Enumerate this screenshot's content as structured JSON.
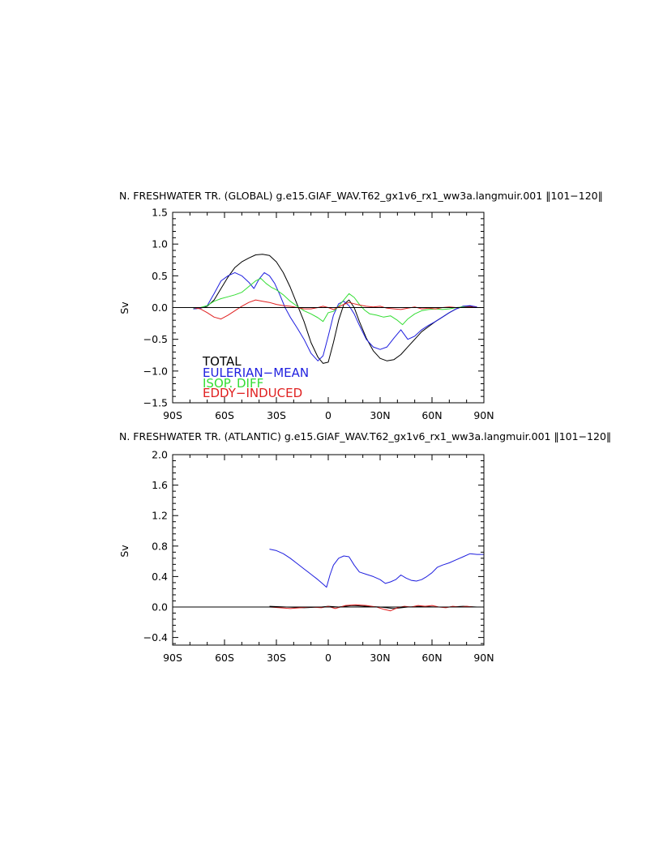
{
  "chart_data": [
    {
      "type": "line",
      "title": "N. FRESHWATER TR. (GLOBAL) g.e15.GIAF_WAV.T62_gx1v6_rx1_ww3a.langmuir.001 ‖101−120‖",
      "xlabel": "",
      "ylabel": "Sv",
      "xlim": [
        -90,
        90
      ],
      "ylim": [
        -1.5,
        1.5
      ],
      "xticks": [
        -90,
        -60,
        -30,
        0,
        30,
        60,
        90
      ],
      "xticklabels": [
        "90S",
        "60S",
        "30S",
        "0",
        "30N",
        "60N",
        "90N"
      ],
      "yticks": [
        -1.5,
        -1.0,
        -0.5,
        0.0,
        0.5,
        1.0,
        1.5
      ],
      "yticklabels": [
        "−1.5",
        "−1.0",
        "−0.5",
        "0.0",
        "0.5",
        "1.0",
        "1.5"
      ],
      "zero_line": true,
      "legend_position": "bottom-left",
      "series": [
        {
          "name": "TOTAL",
          "color": "#000000",
          "x": [
            -78,
            -74,
            -70,
            -66,
            -62,
            -58,
            -54,
            -50,
            -46,
            -42,
            -38,
            -34,
            -30,
            -26,
            -22,
            -18,
            -14,
            -10,
            -6,
            -3,
            0,
            3,
            6,
            9,
            12,
            15,
            18,
            22,
            26,
            30,
            34,
            38,
            42,
            46,
            50,
            54,
            58,
            62,
            66,
            70,
            74,
            78,
            82,
            86
          ],
          "y": [
            -0.02,
            -0.01,
            0.02,
            0.12,
            0.3,
            0.48,
            0.63,
            0.72,
            0.78,
            0.83,
            0.84,
            0.82,
            0.72,
            0.55,
            0.32,
            0.05,
            -0.22,
            -0.55,
            -0.78,
            -0.88,
            -0.86,
            -0.55,
            -0.2,
            0.05,
            0.12,
            0.0,
            -0.22,
            -0.48,
            -0.68,
            -0.8,
            -0.84,
            -0.82,
            -0.74,
            -0.62,
            -0.5,
            -0.38,
            -0.3,
            -0.22,
            -0.15,
            -0.08,
            -0.02,
            0.02,
            0.02,
            0.01
          ]
        },
        {
          "name": "EULERIAN−MEAN",
          "color": "#1f1fdf",
          "x": [
            -78,
            -74,
            -70,
            -66,
            -62,
            -58,
            -54,
            -50,
            -46,
            -43,
            -40,
            -37,
            -34,
            -31,
            -28,
            -25,
            -22,
            -18,
            -14,
            -10,
            -6,
            -3,
            0,
            3,
            6,
            9,
            12,
            15,
            18,
            22,
            26,
            30,
            34,
            38,
            42,
            46,
            50,
            54,
            58,
            62,
            66,
            70,
            74,
            78,
            82,
            86
          ],
          "y": [
            -0.02,
            -0.01,
            0.03,
            0.22,
            0.42,
            0.5,
            0.55,
            0.5,
            0.4,
            0.3,
            0.45,
            0.55,
            0.5,
            0.38,
            0.2,
            0.0,
            -0.15,
            -0.32,
            -0.5,
            -0.72,
            -0.84,
            -0.76,
            -0.45,
            -0.12,
            0.06,
            0.1,
            0.03,
            -0.1,
            -0.28,
            -0.5,
            -0.62,
            -0.66,
            -0.62,
            -0.48,
            -0.35,
            -0.5,
            -0.45,
            -0.35,
            -0.28,
            -0.22,
            -0.15,
            -0.08,
            -0.02,
            0.02,
            0.03,
            0.01
          ]
        },
        {
          "name": "ISOP. DIFF",
          "color": "#33dd33",
          "x": [
            -78,
            -74,
            -70,
            -66,
            -62,
            -58,
            -54,
            -50,
            -46,
            -42,
            -39,
            -36,
            -33,
            -30,
            -26,
            -22,
            -18,
            -14,
            -10,
            -6,
            -3,
            0,
            3,
            6,
            9,
            12,
            15,
            18,
            21,
            24,
            28,
            32,
            36,
            40,
            43,
            46,
            50,
            54,
            58,
            62,
            66,
            70,
            74,
            78,
            82,
            86
          ],
          "y": [
            -0.01,
            0.0,
            0.03,
            0.1,
            0.14,
            0.17,
            0.2,
            0.24,
            0.33,
            0.42,
            0.46,
            0.38,
            0.32,
            0.28,
            0.2,
            0.1,
            0.02,
            -0.05,
            -0.1,
            -0.16,
            -0.22,
            -0.08,
            -0.06,
            0.02,
            0.12,
            0.22,
            0.16,
            0.05,
            -0.04,
            -0.1,
            -0.12,
            -0.15,
            -0.13,
            -0.2,
            -0.27,
            -0.18,
            -0.1,
            -0.05,
            -0.03,
            -0.02,
            -0.03,
            -0.02,
            0.0,
            0.01,
            0.0,
            0.0
          ]
        },
        {
          "name": "EDDY−INDUCED",
          "color": "#e02020",
          "x": [
            -78,
            -74,
            -70,
            -66,
            -62,
            -58,
            -54,
            -50,
            -46,
            -42,
            -38,
            -34,
            -30,
            -26,
            -22,
            -18,
            -14,
            -10,
            -6,
            -3,
            0,
            3,
            6,
            9,
            12,
            15,
            18,
            22,
            26,
            30,
            34,
            38,
            42,
            46,
            50,
            54,
            58,
            62,
            66,
            70,
            74,
            78,
            82,
            86
          ],
          "y": [
            0.0,
            -0.02,
            -0.08,
            -0.15,
            -0.18,
            -0.12,
            -0.05,
            0.02,
            0.08,
            0.12,
            0.1,
            0.08,
            0.05,
            0.03,
            0.02,
            0.0,
            -0.02,
            -0.02,
            0.0,
            0.02,
            0.0,
            -0.03,
            0.01,
            0.05,
            0.08,
            0.06,
            0.04,
            0.02,
            0.01,
            0.02,
            -0.01,
            -0.02,
            -0.03,
            -0.01,
            0.01,
            -0.02,
            -0.01,
            -0.02,
            0.0,
            0.01,
            0.0,
            0.0,
            0.01,
            0.0
          ]
        }
      ]
    },
    {
      "type": "line",
      "title": "N. FRESHWATER TR. (ATLANTIC) g.e15.GIAF_WAV.T62_gx1v6_rx1_ww3a.langmuir.001 ‖101−120‖",
      "xlabel": "",
      "ylabel": "Sv",
      "xlim": [
        -90,
        90
      ],
      "ylim": [
        -0.5,
        2.0
      ],
      "xticks": [
        -90,
        -60,
        -30,
        0,
        30,
        60,
        90
      ],
      "xticklabels": [
        "90S",
        "60S",
        "30S",
        "0",
        "30N",
        "60N",
        "90N"
      ],
      "yticks": [
        -0.4,
        0.0,
        0.4,
        0.8,
        1.2,
        1.6,
        2.0
      ],
      "yticklabels": [
        "−0.4",
        "0.0",
        "0.4",
        "0.8",
        "1.2",
        "1.6",
        "2.0"
      ],
      "zero_line": true,
      "series": [
        {
          "name": "",
          "color": "#1f1fdf",
          "x": [
            -34,
            -30,
            -26,
            -22,
            -18,
            -14,
            -10,
            -6,
            -3,
            -1,
            1,
            3,
            6,
            9,
            12,
            15,
            18,
            22,
            26,
            30,
            33,
            36,
            39,
            42,
            45,
            48,
            51,
            54,
            57,
            60,
            63,
            66,
            70,
            74,
            78,
            82,
            86,
            90
          ],
          "y": [
            0.76,
            0.74,
            0.7,
            0.64,
            0.57,
            0.5,
            0.43,
            0.36,
            0.3,
            0.26,
            0.42,
            0.55,
            0.64,
            0.67,
            0.66,
            0.55,
            0.46,
            0.43,
            0.4,
            0.36,
            0.31,
            0.33,
            0.36,
            0.42,
            0.38,
            0.35,
            0.34,
            0.36,
            0.4,
            0.45,
            0.52,
            0.55,
            0.58,
            0.62,
            0.66,
            0.7,
            0.69,
            0.69
          ]
        },
        {
          "name": "",
          "color": "#000000",
          "x": [
            -34,
            -24,
            -14,
            -4,
            0,
            6,
            14,
            22,
            30,
            38,
            46,
            54,
            62,
            70,
            78,
            86,
            90
          ],
          "y": [
            0.01,
            0.0,
            -0.01,
            0.0,
            0.01,
            0.0,
            0.02,
            0.01,
            0.0,
            -0.02,
            0.0,
            0.01,
            0.0,
            0.0,
            0.01,
            0.0,
            0.0
          ]
        },
        {
          "name": "",
          "color": "#e02020",
          "x": [
            -34,
            -28,
            -22,
            -16,
            -10,
            -4,
            0,
            4,
            10,
            16,
            22,
            28,
            32,
            36,
            40,
            44,
            48,
            52,
            56,
            60,
            64,
            68,
            72,
            76,
            80,
            84,
            88
          ],
          "y": [
            0.0,
            -0.01,
            -0.02,
            -0.01,
            0.0,
            -0.01,
            0.01,
            -0.02,
            0.02,
            0.03,
            0.02,
            0.0,
            -0.03,
            -0.05,
            -0.01,
            0.01,
            0.0,
            0.02,
            0.01,
            0.02,
            0.0,
            -0.01,
            0.01,
            0.0,
            0.01,
            0.0,
            0.0
          ]
        }
      ]
    }
  ]
}
